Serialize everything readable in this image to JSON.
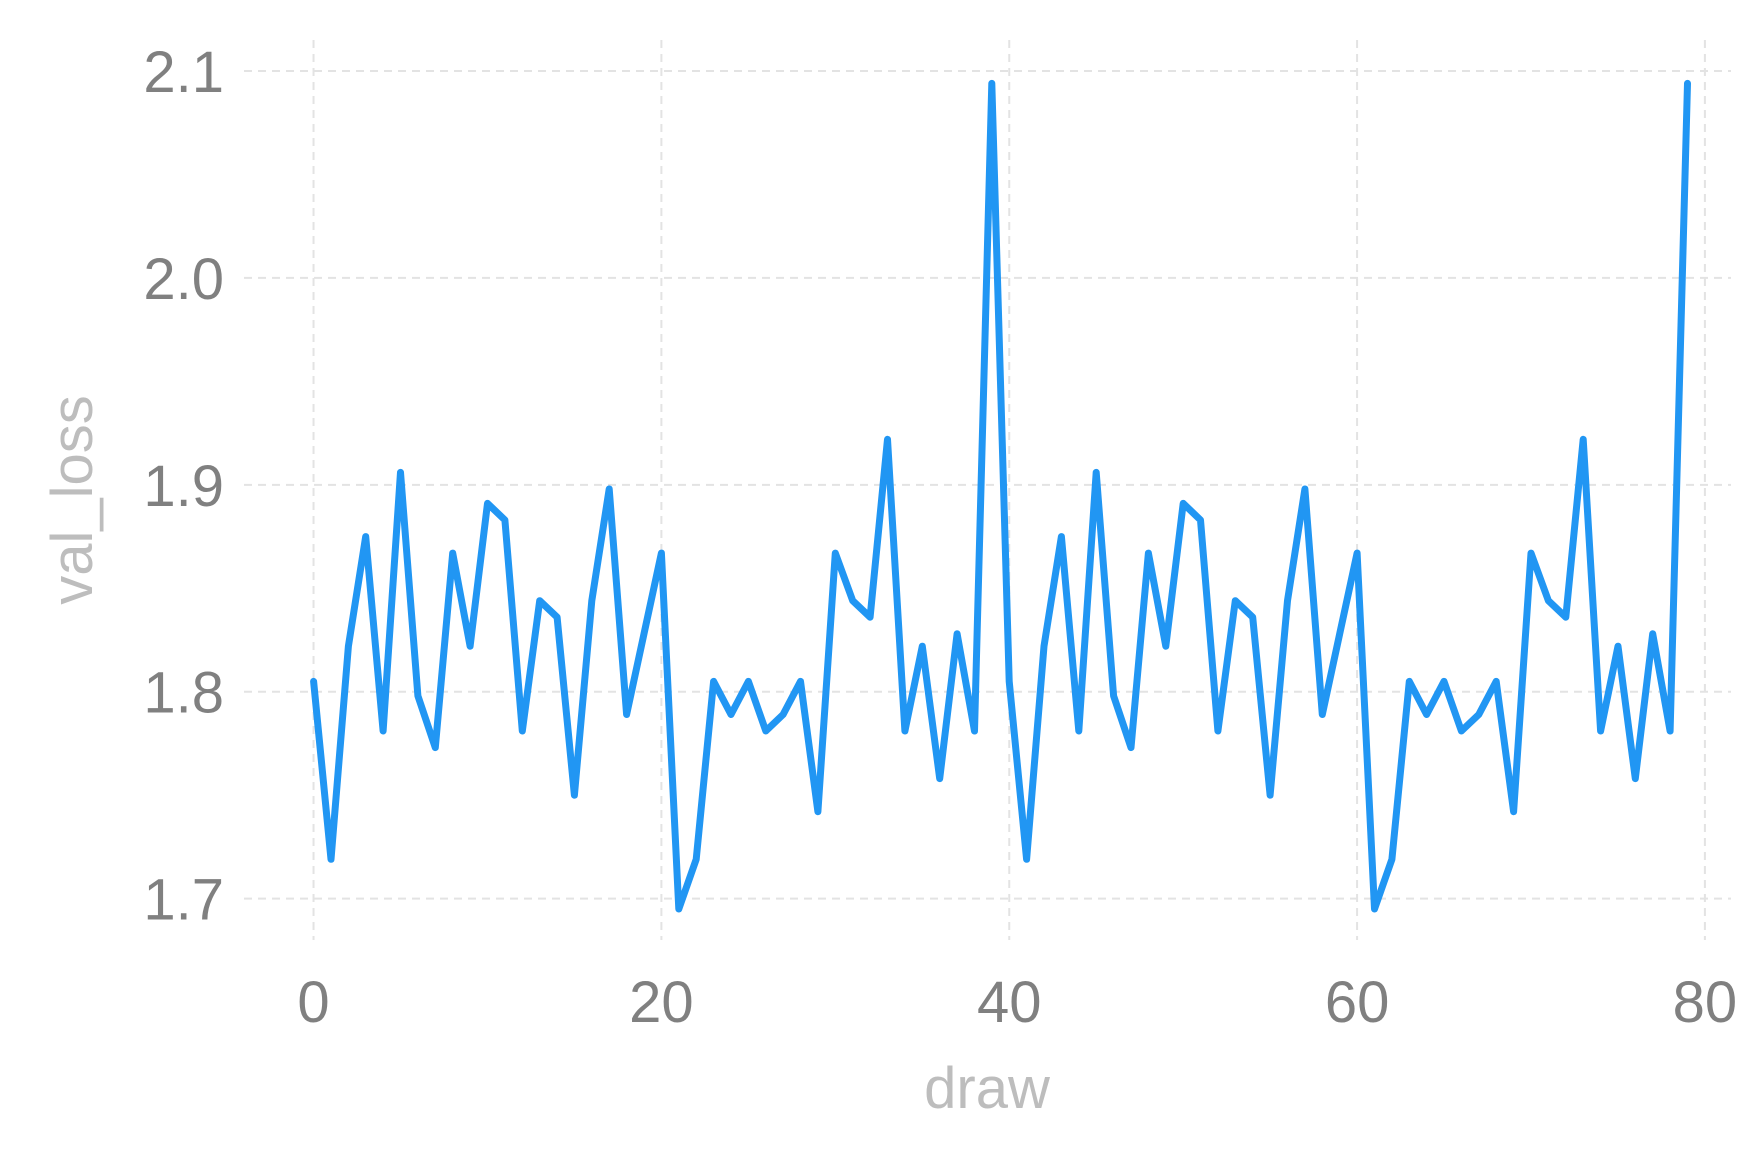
{
  "chart_data": {
    "type": "line",
    "title": "",
    "xlabel": "draw",
    "ylabel": "val_loss",
    "xlim": [
      -4,
      81.5
    ],
    "ylim": [
      1.68,
      2.115
    ],
    "x_ticks": [
      0,
      20,
      40,
      60,
      80
    ],
    "x_tick_labels": [
      "0",
      "20",
      "40",
      "60",
      "80"
    ],
    "y_ticks": [
      1.7,
      1.8,
      1.9,
      2.0,
      2.1
    ],
    "y_tick_labels": [
      "1.7",
      "1.8",
      "1.9",
      "2.0",
      "2.1"
    ],
    "grid": true,
    "legend": "none",
    "series": [
      {
        "color": "#2196f3",
        "x": [
          0,
          1,
          2,
          3,
          4,
          5,
          6,
          7,
          8,
          9,
          10,
          11,
          12,
          13,
          14,
          15,
          16,
          17,
          18,
          19,
          20,
          21,
          22,
          23,
          24,
          25,
          26,
          27,
          28,
          29,
          30,
          31,
          32,
          33,
          34,
          35,
          36,
          37,
          38,
          39,
          40,
          41,
          42,
          43,
          44,
          45,
          46,
          47,
          48,
          49,
          50,
          51,
          52,
          53,
          54,
          55,
          56,
          57,
          58,
          59,
          60,
          61,
          62,
          63,
          64,
          65,
          66,
          67,
          68,
          69,
          70,
          71,
          72,
          73,
          74,
          75,
          76,
          77,
          78,
          79
        ],
        "y": [
          1.805,
          1.719,
          1.822,
          1.875,
          1.781,
          1.906,
          1.798,
          1.773,
          1.867,
          1.822,
          1.891,
          1.883,
          1.781,
          1.844,
          1.836,
          1.75,
          1.844,
          1.898,
          1.789,
          1.828,
          1.867,
          1.695,
          1.719,
          1.805,
          1.789,
          1.805,
          1.781,
          1.789,
          1.805,
          1.742,
          1.867,
          1.844,
          1.836,
          1.922,
          1.781,
          1.822,
          1.758,
          1.828,
          1.781,
          2.094,
          1.805,
          1.719,
          1.822,
          1.875,
          1.781,
          1.906,
          1.798,
          1.773,
          1.867,
          1.822,
          1.891,
          1.883,
          1.781,
          1.844,
          1.836,
          1.75,
          1.844,
          1.898,
          1.789,
          1.828,
          1.867,
          1.695,
          1.719,
          1.805,
          1.789,
          1.805,
          1.781,
          1.789,
          1.805,
          1.742,
          1.867,
          1.844,
          1.836,
          1.922,
          1.781,
          1.822,
          1.758,
          1.828,
          1.781,
          2.094
        ]
      }
    ]
  }
}
